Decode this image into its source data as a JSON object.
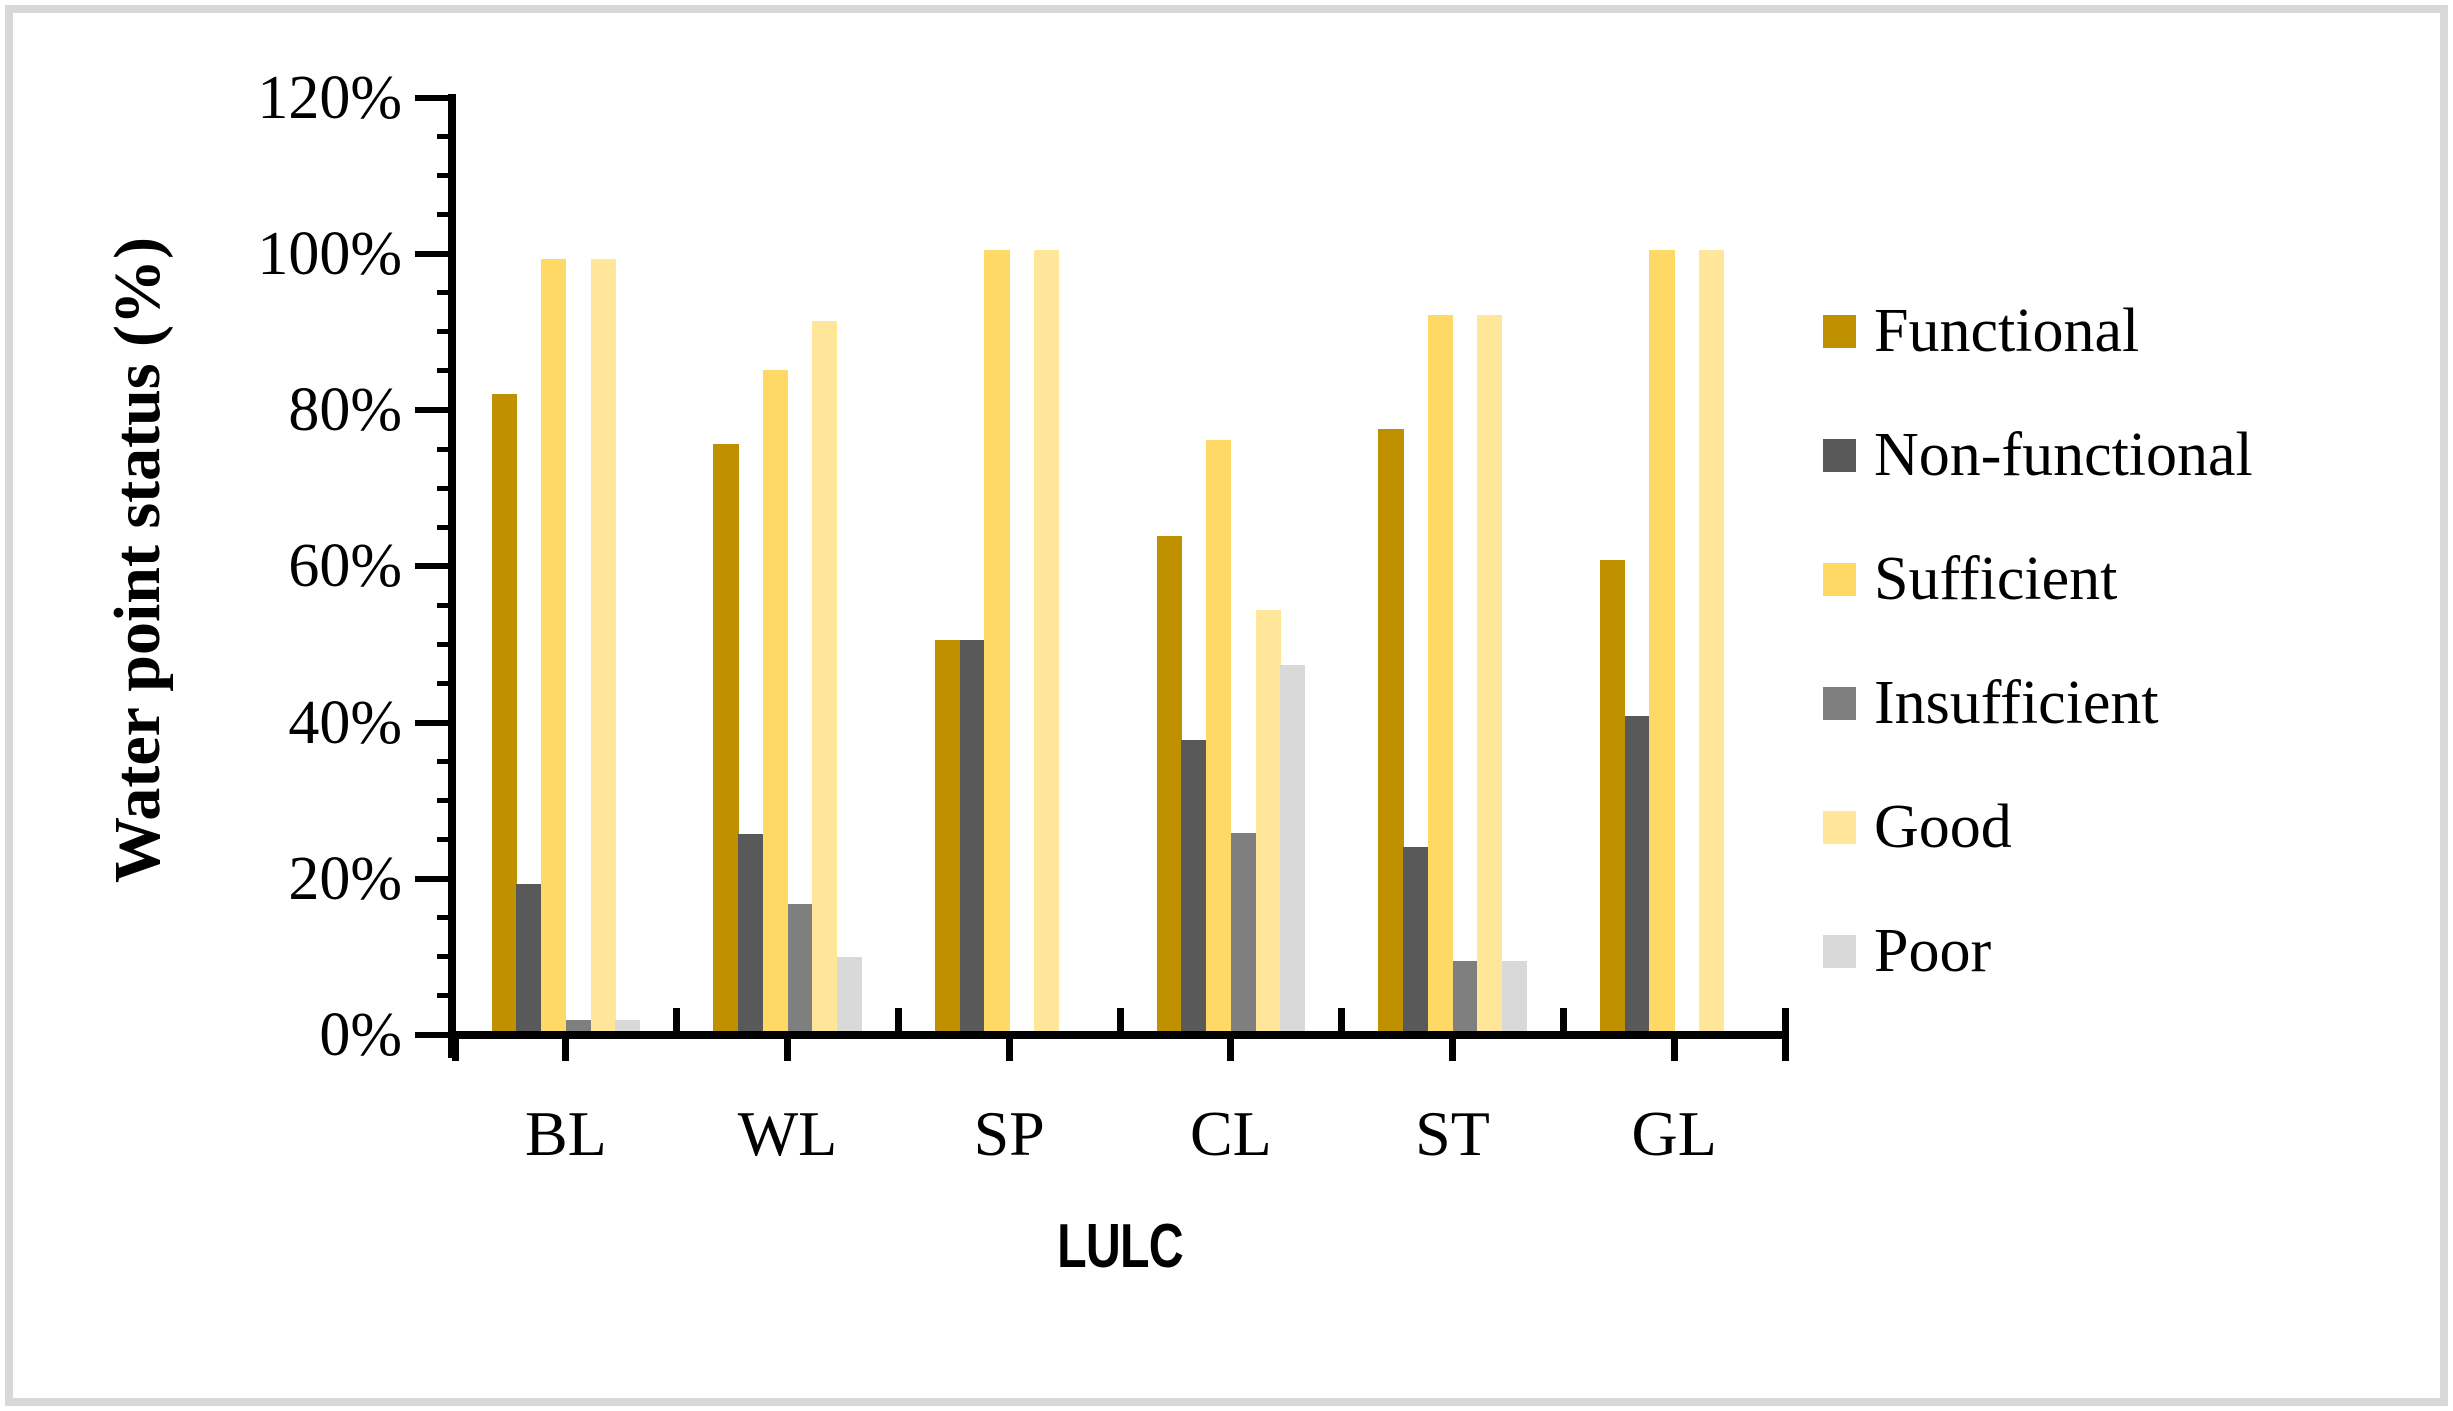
{
  "chart_data": {
    "type": "bar",
    "title": "",
    "ylabel": "Water point status (%)",
    "xlabel": "LULC",
    "ylim": [
      0,
      120
    ],
    "y_major_step": 20,
    "y_minor_step": 5,
    "grid": false,
    "legend_position": "right",
    "y_tick_labels": [
      "0%",
      "20%",
      "40%",
      "60%",
      "80%",
      "100%",
      "120%"
    ],
    "categories": [
      "BL",
      "WL",
      "SP",
      "CL",
      "ST",
      "GL"
    ],
    "series": [
      {
        "name": "Functional",
        "color": "#BF9000",
        "values": [
          81.5,
          75.2,
          50,
          63.3,
          77,
          60.3
        ]
      },
      {
        "name": "Non-functional",
        "color": "#595959",
        "values": [
          18.8,
          25.2,
          50,
          37.2,
          23.6,
          40.3
        ]
      },
      {
        "name": "Sufficient",
        "color": "#FFD966",
        "values": [
          98.8,
          84.6,
          100,
          75.7,
          91.7,
          100
        ]
      },
      {
        "name": "Insufficient",
        "color": "#7F7F7F",
        "values": [
          1.4,
          16.3,
          0,
          25.3,
          8.9,
          0
        ]
      },
      {
        "name": "Good",
        "color": "#FFE699",
        "values": [
          98.8,
          90.9,
          100,
          53.9,
          91.6,
          100
        ]
      },
      {
        "name": "Poor",
        "color": "#D9D9D9",
        "values": [
          1.4,
          9.5,
          0,
          46.8,
          8.9,
          0
        ]
      }
    ]
  },
  "colors": {
    "axis": "#000000",
    "frame_border": "#D8D8D8",
    "background": "#FFFFFF"
  }
}
